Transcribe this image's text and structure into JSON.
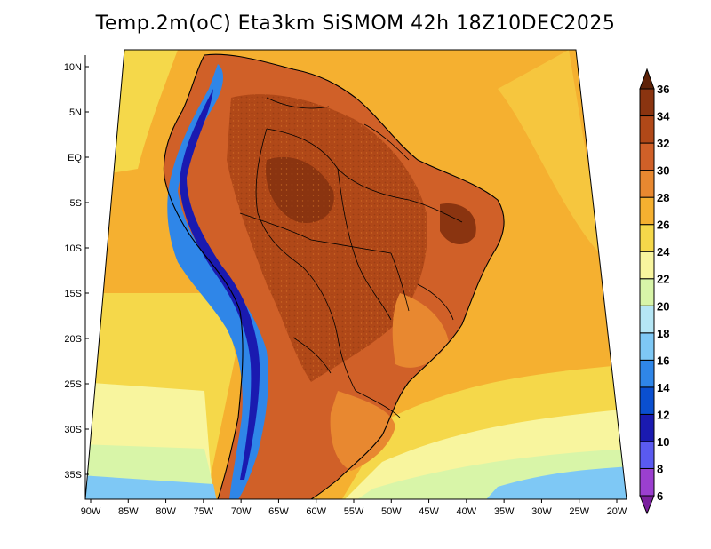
{
  "title": "Temp.2m(oC) Eta3km SiSMOM 42h 18Z10DEC2025",
  "lat_ticks": [
    "10N",
    "5N",
    "EQ",
    "5S",
    "10S",
    "15S",
    "20S",
    "25S",
    "30S",
    "35S"
  ],
  "lon_ticks": [
    "90W",
    "85W",
    "80W",
    "75W",
    "70W",
    "65W",
    "60W",
    "55W",
    "50W",
    "45W",
    "40W",
    "35W",
    "30W",
    "25W",
    "20W"
  ],
  "colorbar": {
    "labels": [
      "6",
      "8",
      "10",
      "12",
      "14",
      "16",
      "18",
      "20",
      "22",
      "24",
      "26",
      "28",
      "30",
      "32",
      "34",
      "36"
    ],
    "colors": [
      "#7a1f9e",
      "#9b3fcf",
      "#5a5af0",
      "#1a1ab0",
      "#0a4fd0",
      "#2f86e8",
      "#7ec8f5",
      "#b5e6f5",
      "#d8f5a8",
      "#f8f59e",
      "#f5d84a",
      "#f5b030",
      "#e88830",
      "#d06028",
      "#b04818",
      "#8a3410",
      "#5e2208"
    ]
  },
  "palette": {
    "ocean_warm": "#f5b030",
    "ocean_mid": "#f5d84a",
    "ocean_cool": "#f8f59e",
    "ocean_cold": "#d8f5a8",
    "ocean_coldest": "#7ec8f5",
    "land_hot": "#b04818",
    "land_very_hot": "#8a3410",
    "land_warm": "#d06028",
    "land_mild": "#e88830",
    "andes_cold": "#2f86e8",
    "andes_colder": "#1a1ab0"
  }
}
